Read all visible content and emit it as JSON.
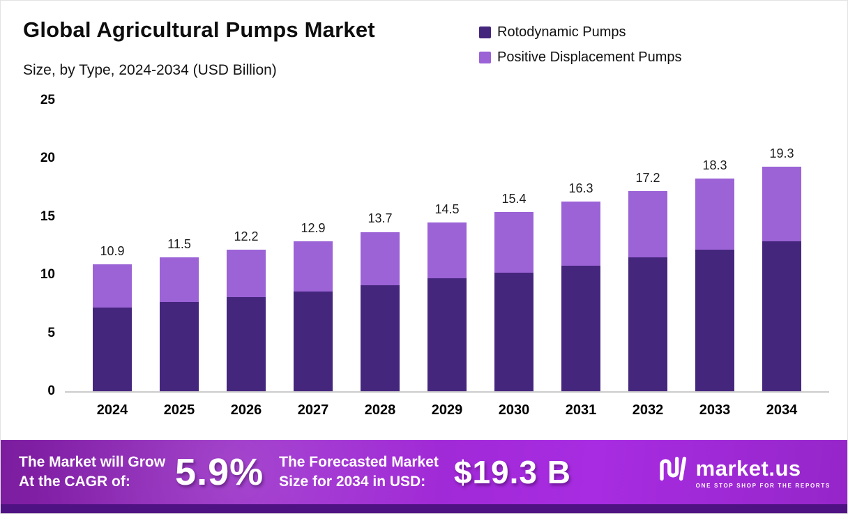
{
  "header": {
    "title": "Global Agricultural Pumps Market",
    "subtitle": "Size, by Type, 2024-2034 (USD Billion)"
  },
  "legend": [
    {
      "label": "Rotodynamic Pumps",
      "color": "#45267d"
    },
    {
      "label": "Positive Displacement Pumps",
      "color": "#9b63d6"
    }
  ],
  "chart_data": {
    "type": "bar",
    "stacked": true,
    "title": "Global Agricultural Pumps Market Size, by Type, 2024-2034 (USD Billion)",
    "categories": [
      "2024",
      "2025",
      "2026",
      "2027",
      "2028",
      "2029",
      "2030",
      "2031",
      "2032",
      "2033",
      "2034"
    ],
    "series": [
      {
        "name": "Rotodynamic Pumps",
        "color": "#45267d",
        "values": [
          7.2,
          7.7,
          8.1,
          8.6,
          9.1,
          9.7,
          10.2,
          10.8,
          11.5,
          12.2,
          12.9
        ]
      },
      {
        "name": "Positive Displacement Pumps",
        "color": "#9b63d6",
        "values": [
          3.7,
          3.8,
          4.1,
          4.3,
          4.6,
          4.8,
          5.2,
          5.5,
          5.7,
          6.1,
          6.4
        ]
      }
    ],
    "totals": [
      10.9,
      11.5,
      12.2,
      12.9,
      13.7,
      14.5,
      15.4,
      16.3,
      17.2,
      18.3,
      19.3
    ],
    "xlabel": "",
    "ylabel": "USD Billion",
    "ylim": [
      0,
      25
    ],
    "yticks": [
      0,
      5,
      10,
      15,
      20,
      25
    ],
    "grid": false,
    "legend_position": "top-right"
  },
  "banner": {
    "growth_label_line1": "The Market will Grow",
    "growth_label_line2": "At the CAGR of:",
    "cagr_value": "5.9%",
    "forecast_label_line1": "The Forecasted Market",
    "forecast_label_line2": "Size for 2034 in USD:",
    "forecast_value": "$19.3 B",
    "brand_name": "market.us",
    "brand_tagline": "ONE STOP SHOP FOR THE REPORTS",
    "background_gradient": [
      "#7c1d9e",
      "#a82ce2"
    ],
    "strip_color": "#4e1283"
  }
}
